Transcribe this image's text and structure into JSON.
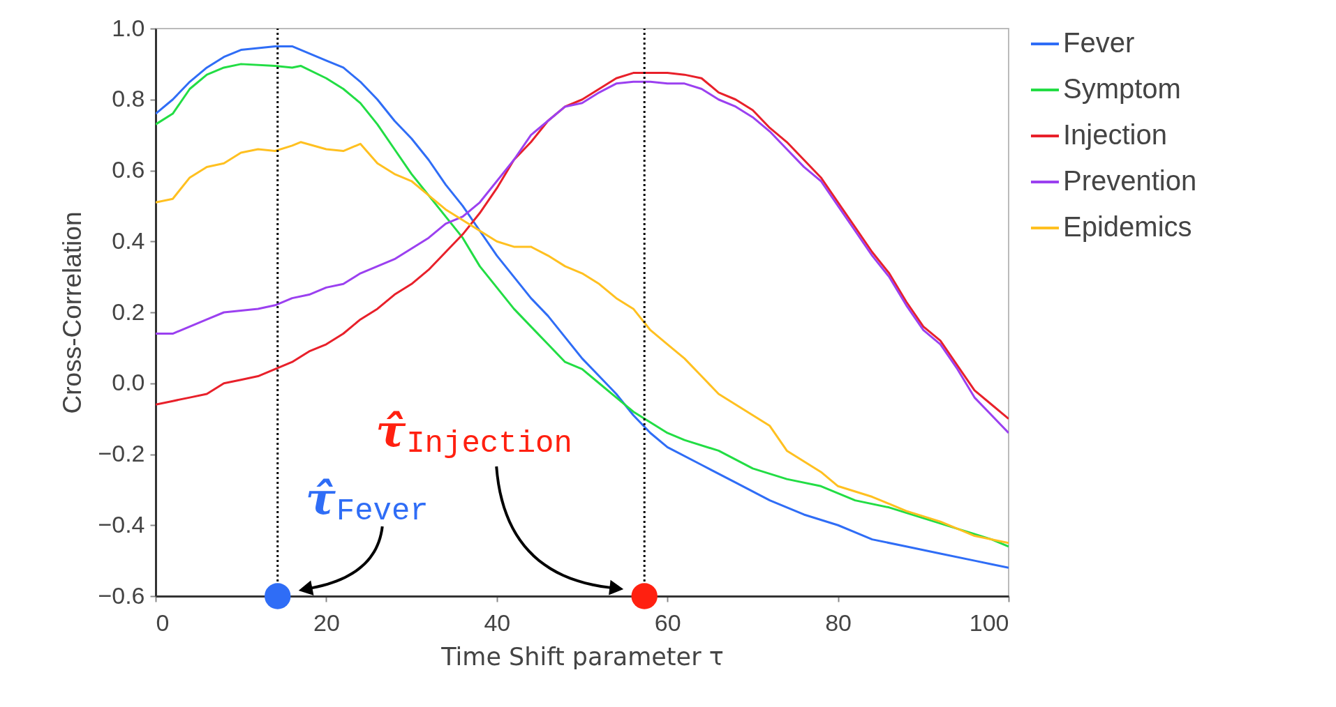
{
  "chart_data": {
    "type": "line",
    "xlabel": "Time Shift parameter τ",
    "ylabel": "Cross-Correlation",
    "xlim": [
      0,
      100
    ],
    "ylim": [
      -0.6,
      1.0
    ],
    "xticks": [
      0,
      20,
      40,
      60,
      80,
      100
    ],
    "yticks": [
      {
        "value": -0.6,
        "label": "−0.6"
      },
      {
        "value": -0.4,
        "label": "−0.4"
      },
      {
        "value": -0.2,
        "label": "−0.2"
      },
      {
        "value": 0,
        "label": "0.0"
      },
      {
        "value": 0.2,
        "label": "0.2"
      },
      {
        "value": 0.4,
        "label": "0.4"
      },
      {
        "value": 0.6,
        "label": "0.6"
      },
      {
        "value": 0.8,
        "label": "0.8"
      },
      {
        "value": 1.0,
        "label": "1.0"
      }
    ],
    "grid": false,
    "legend": "right",
    "line_style": "solid",
    "series": [
      {
        "name": "Fever",
        "color": "#2f6df6",
        "x": [
          0,
          2,
          4,
          6,
          8,
          10,
          12,
          14,
          16,
          18,
          20,
          22,
          24,
          26,
          28,
          30,
          32,
          34,
          36,
          38,
          40,
          42,
          44,
          46,
          48,
          50,
          52,
          54,
          56,
          58,
          60,
          64,
          68,
          72,
          76,
          80,
          84,
          88,
          92,
          96,
          98,
          100
        ],
        "values": [
          0.76,
          0.8,
          0.85,
          0.89,
          0.92,
          0.94,
          0.945,
          0.95,
          0.95,
          0.93,
          0.91,
          0.89,
          0.85,
          0.8,
          0.74,
          0.69,
          0.63,
          0.56,
          0.5,
          0.43,
          0.36,
          0.3,
          0.24,
          0.19,
          0.13,
          0.07,
          0.02,
          -0.03,
          -0.09,
          -0.14,
          -0.18,
          -0.23,
          -0.28,
          -0.33,
          -0.37,
          -0.4,
          -0.44,
          -0.46,
          -0.48,
          -0.5,
          -0.51,
          -0.52
        ]
      },
      {
        "name": "Symptom",
        "color": "#22dd44",
        "x": [
          0,
          2,
          4,
          6,
          8,
          10,
          14,
          16,
          17,
          20,
          22,
          24,
          26,
          28,
          30,
          32,
          34,
          36,
          38,
          40,
          42,
          44,
          46,
          48,
          50,
          52,
          54,
          56,
          58,
          60,
          62,
          66,
          70,
          74,
          78,
          82,
          86,
          90,
          94,
          98,
          100
        ],
        "values": [
          0.73,
          0.76,
          0.83,
          0.87,
          0.89,
          0.9,
          0.895,
          0.89,
          0.895,
          0.86,
          0.83,
          0.79,
          0.73,
          0.66,
          0.59,
          0.53,
          0.47,
          0.41,
          0.33,
          0.27,
          0.21,
          0.16,
          0.11,
          0.06,
          0.04,
          0.0,
          -0.04,
          -0.08,
          -0.11,
          -0.14,
          -0.16,
          -0.19,
          -0.24,
          -0.27,
          -0.29,
          -0.33,
          -0.35,
          -0.38,
          -0.41,
          -0.44,
          -0.46
        ]
      },
      {
        "name": "Injection",
        "color": "#e8202a",
        "x": [
          0,
          2,
          4,
          6,
          8,
          10,
          12,
          14,
          16,
          18,
          20,
          22,
          24,
          26,
          28,
          30,
          32,
          34,
          36,
          38,
          40,
          42,
          44,
          46,
          48,
          50,
          52,
          54,
          56,
          58,
          60,
          62,
          64,
          66,
          68,
          70,
          72,
          74,
          76,
          78,
          80,
          82,
          84,
          86,
          88,
          90,
          92,
          94,
          96,
          98,
          100
        ],
        "values": [
          -0.06,
          -0.05,
          -0.04,
          -0.03,
          0.0,
          0.01,
          0.02,
          0.04,
          0.06,
          0.09,
          0.11,
          0.14,
          0.18,
          0.21,
          0.25,
          0.28,
          0.32,
          0.37,
          0.42,
          0.48,
          0.55,
          0.63,
          0.68,
          0.74,
          0.78,
          0.8,
          0.83,
          0.86,
          0.875,
          0.875,
          0.875,
          0.87,
          0.86,
          0.82,
          0.8,
          0.77,
          0.72,
          0.68,
          0.63,
          0.58,
          0.51,
          0.44,
          0.37,
          0.31,
          0.23,
          0.16,
          0.12,
          0.05,
          -0.02,
          -0.06,
          -0.1
        ]
      },
      {
        "name": "Prevention",
        "color": "#9b40f0",
        "x": [
          0,
          2,
          4,
          6,
          8,
          10,
          12,
          14,
          16,
          18,
          20,
          22,
          24,
          26,
          28,
          30,
          32,
          34,
          36,
          38,
          40,
          42,
          44,
          46,
          48,
          50,
          52,
          54,
          56,
          58,
          60,
          62,
          64,
          66,
          68,
          70,
          72,
          74,
          76,
          78,
          80,
          82,
          84,
          86,
          88,
          90,
          92,
          94,
          96,
          98,
          100
        ],
        "values": [
          0.14,
          0.14,
          0.16,
          0.18,
          0.2,
          0.205,
          0.21,
          0.22,
          0.24,
          0.25,
          0.27,
          0.28,
          0.31,
          0.33,
          0.35,
          0.38,
          0.41,
          0.45,
          0.47,
          0.51,
          0.57,
          0.63,
          0.7,
          0.74,
          0.78,
          0.79,
          0.82,
          0.845,
          0.85,
          0.85,
          0.845,
          0.845,
          0.83,
          0.8,
          0.78,
          0.75,
          0.71,
          0.66,
          0.61,
          0.57,
          0.5,
          0.43,
          0.36,
          0.3,
          0.22,
          0.15,
          0.11,
          0.04,
          -0.04,
          -0.09,
          -0.14
        ]
      },
      {
        "name": "Epidemics",
        "color": "#ffc020",
        "x": [
          0,
          2,
          4,
          6,
          8,
          10,
          12,
          14,
          16,
          17,
          20,
          22,
          24,
          26,
          28,
          30,
          32,
          34,
          36,
          38,
          40,
          42,
          44,
          46,
          48,
          50,
          52,
          54,
          56,
          58,
          60,
          62,
          64,
          66,
          68,
          70,
          72,
          74,
          76,
          78,
          80,
          84,
          86,
          88,
          92,
          96,
          100
        ],
        "values": [
          0.51,
          0.52,
          0.58,
          0.61,
          0.62,
          0.65,
          0.66,
          0.655,
          0.67,
          0.68,
          0.66,
          0.655,
          0.675,
          0.62,
          0.59,
          0.57,
          0.53,
          0.49,
          0.46,
          0.43,
          0.4,
          0.385,
          0.385,
          0.36,
          0.33,
          0.31,
          0.28,
          0.24,
          0.21,
          0.15,
          0.11,
          0.07,
          0.02,
          -0.03,
          -0.06,
          -0.09,
          -0.12,
          -0.19,
          -0.22,
          -0.25,
          -0.29,
          -0.32,
          -0.34,
          -0.36,
          -0.39,
          -0.43,
          -0.45
        ]
      },
      {
        "type": "scatter",
        "marker": "circle",
        "color": "#2f6df6",
        "x": [
          14.3
        ],
        "values": [
          -0.6
        ]
      },
      {
        "type": "scatter",
        "marker": "circle",
        "color": "#ff2010",
        "x": [
          57.3
        ],
        "values": [
          -0.6
        ]
      }
    ],
    "ref_lines": [
      {
        "axis": "x",
        "value": 14.3,
        "color": "#000000",
        "line_style": "dotted"
      },
      {
        "axis": "x",
        "value": 57.3,
        "color": "#000000",
        "line_style": "dotted"
      }
    ],
    "annotations": [
      "τ̂$_{Fever}$",
      "τ̂$_{Injection}$"
    ]
  }
}
